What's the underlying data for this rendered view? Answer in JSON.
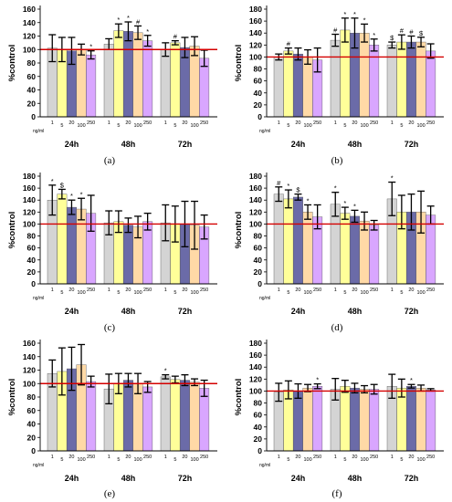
{
  "figure": {
    "panel_labels": [
      "(a)",
      "(b)",
      "(c)",
      "(d)",
      "(e)",
      "(f)"
    ]
  },
  "colors": {
    "bars": [
      "#d4d4d4",
      "#ffff99",
      "#6b6ba8",
      "#ffd9a6",
      "#d9a6ff"
    ],
    "reference_line": "#d40000",
    "error_bar": "#000000"
  },
  "chart_data": [
    {
      "type": "bar",
      "panel": "(a)",
      "ylabel": "%control",
      "ylim": [
        0,
        160
      ],
      "yticks": [
        0,
        20,
        40,
        60,
        80,
        100,
        120,
        140,
        160
      ],
      "groups": [
        "24h",
        "48h",
        "72h"
      ],
      "concentrations": [
        "1",
        "5",
        "20",
        "100",
        "250"
      ],
      "unit_label": "ng/ml",
      "reference_value": 100,
      "values": [
        [
          102,
          100,
          98,
          100,
          92
        ],
        [
          108,
          128,
          127,
          125,
          113
        ],
        [
          100,
          110,
          103,
          105,
          87
        ]
      ],
      "errors": [
        [
          20,
          18,
          20,
          8,
          6
        ],
        [
          8,
          10,
          14,
          10,
          8
        ],
        [
          10,
          3,
          15,
          14,
          12
        ]
      ],
      "annotations": [
        [
          "",
          "",
          "",
          "",
          "*"
        ],
        [
          "",
          "*",
          "*",
          "#",
          "*"
        ],
        [
          "",
          "#",
          "",
          "",
          ""
        ]
      ]
    },
    {
      "type": "bar",
      "panel": "(b)",
      "ylabel": "%control",
      "ylim": [
        0,
        180
      ],
      "yticks": [
        0,
        20,
        40,
        60,
        80,
        100,
        120,
        140,
        160,
        180
      ],
      "groups": [
        "24h",
        "48h",
        "72h"
      ],
      "concentrations": [
        "1",
        "5",
        "20",
        "100",
        "250"
      ],
      "unit_label": "ng/ml",
      "reference_value": 100,
      "values": [
        [
          100,
          110,
          105,
          100,
          95
        ],
        [
          128,
          145,
          140,
          140,
          120
        ],
        [
          120,
          125,
          125,
          125,
          110
        ]
      ],
      "errors": [
        [
          5,
          5,
          10,
          12,
          20
        ],
        [
          10,
          20,
          25,
          15,
          10
        ],
        [
          5,
          12,
          10,
          8,
          12
        ]
      ],
      "annotations": [
        [
          "",
          "#",
          "",
          "",
          ""
        ],
        [
          "#",
          "*",
          "*",
          "*",
          "*"
        ],
        [
          "$",
          "#",
          "#",
          "$",
          ""
        ]
      ]
    },
    {
      "type": "bar",
      "panel": "(c)",
      "ylabel": "%control",
      "ylim": [
        0,
        180
      ],
      "yticks": [
        0,
        20,
        40,
        60,
        80,
        100,
        120,
        140,
        160,
        180
      ],
      "groups": [
        "24h",
        "48h",
        "72h"
      ],
      "concentrations": [
        "1",
        "5",
        "20",
        "100",
        "250"
      ],
      "unit_label": "ng/ml",
      "reference_value": 100,
      "values": [
        [
          140,
          150,
          128,
          125,
          118
        ],
        [
          102,
          104,
          98,
          95,
          104
        ],
        [
          102,
          100,
          100,
          98,
          95
        ]
      ],
      "errors": [
        [
          25,
          8,
          12,
          18,
          30
        ],
        [
          20,
          18,
          12,
          18,
          14
        ],
        [
          30,
          30,
          38,
          40,
          20
        ]
      ],
      "annotations": [
        [
          "*",
          "$",
          "*",
          "*",
          ""
        ],
        [
          "",
          "",
          "",
          "",
          ""
        ],
        [
          "",
          "",
          "",
          "",
          ""
        ]
      ]
    },
    {
      "type": "bar",
      "panel": "(d)",
      "ylabel": "%control",
      "ylim": [
        0,
        180
      ],
      "yticks": [
        0,
        20,
        40,
        60,
        80,
        100,
        120,
        140,
        160,
        180
      ],
      "groups": [
        "24h",
        "48h",
        "72h"
      ],
      "concentrations": [
        "1",
        "5",
        "20",
        "100",
        "250"
      ],
      "unit_label": "ng/ml",
      "reference_value": 100,
      "values": [
        [
          150,
          142,
          145,
          120,
          112
        ],
        [
          133,
          118,
          113,
          105,
          98
        ],
        [
          142,
          120,
          120,
          120,
          115
        ]
      ],
      "errors": [
        [
          12,
          15,
          5,
          12,
          20
        ],
        [
          20,
          10,
          10,
          15,
          8
        ],
        [
          28,
          28,
          30,
          35,
          15
        ]
      ],
      "annotations": [
        [
          "#",
          "*",
          "$",
          "*",
          ""
        ],
        [
          "*",
          "*",
          "*",
          "",
          ""
        ],
        [
          "*",
          "",
          "",
          "",
          ""
        ]
      ]
    },
    {
      "type": "bar",
      "panel": "(e)",
      "ylabel": "%control",
      "ylim": [
        0,
        160
      ],
      "yticks": [
        0,
        20,
        40,
        60,
        80,
        100,
        120,
        140,
        160
      ],
      "groups": [
        "24h",
        "48h",
        "72h"
      ],
      "concentrations": [
        "1",
        "5",
        "20",
        "100",
        "250"
      ],
      "unit_label": "ng/ml",
      "reference_value": 100,
      "values": [
        [
          115,
          118,
          122,
          128,
          103
        ],
        [
          92,
          100,
          105,
          100,
          95
        ],
        [
          110,
          106,
          105,
          102,
          93
        ]
      ],
      "errors": [
        [
          20,
          35,
          32,
          30,
          8
        ],
        [
          22,
          15,
          10,
          15,
          8
        ],
        [
          3,
          5,
          8,
          5,
          12
        ]
      ],
      "annotations": [
        [
          "",
          "",
          "",
          "",
          ""
        ],
        [
          "",
          "",
          "",
          "",
          ""
        ],
        [
          "*",
          "",
          "",
          "",
          ""
        ]
      ]
    },
    {
      "type": "bar",
      "panel": "(f)",
      "ylabel": "%control",
      "ylim": [
        0,
        180
      ],
      "yticks": [
        0,
        20,
        40,
        60,
        80,
        100,
        120,
        140,
        160,
        180
      ],
      "groups": [
        "24h",
        "48h",
        "72h"
      ],
      "concentrations": [
        "1",
        "5",
        "20",
        "100",
        "250"
      ],
      "unit_label": "ng/ml",
      "reference_value": 100,
      "values": [
        [
          98,
          102,
          100,
          105,
          108
        ],
        [
          103,
          108,
          105,
          103,
          103
        ],
        [
          108,
          105,
          108,
          105,
          102
        ]
      ],
      "errors": [
        [
          15,
          15,
          12,
          6,
          4
        ],
        [
          18,
          10,
          8,
          6,
          8
        ],
        [
          20,
          15,
          3,
          5,
          2
        ]
      ],
      "annotations": [
        [
          "",
          "",
          "",
          "",
          "*"
        ],
        [
          "",
          "",
          "",
          "",
          ""
        ],
        [
          "",
          "",
          "*",
          "",
          ""
        ]
      ]
    }
  ]
}
